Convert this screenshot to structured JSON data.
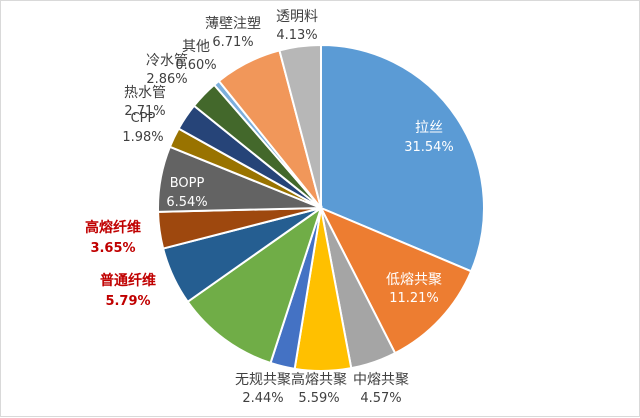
{
  "chart_data": {
    "type": "pie",
    "title": "",
    "slices": [
      {
        "label": "拉丝",
        "value": "31.54%",
        "pct": 31.54,
        "color": "#5b9bd5",
        "label_color": "#ffffff"
      },
      {
        "label": "低熔共聚",
        "value": "11.21%",
        "pct": 11.21,
        "color": "#ed7d31",
        "label_color": "#ffffff"
      },
      {
        "label": "中熔共聚",
        "value": "4.57%",
        "pct": 4.57,
        "color": "#a5a5a5",
        "label_color": "#404040"
      },
      {
        "label": "高熔共聚",
        "value": "5.59%",
        "pct": 5.59,
        "color": "#ffc000",
        "label_color": "#404040"
      },
      {
        "label": "无规共聚",
        "value": "2.44%",
        "pct": 2.44,
        "color": "#4472c4",
        "label_color": "#404040"
      },
      {
        "label": "",
        "value": "",
        "pct": 10.3,
        "color": "#70ad47",
        "label_color": "#404040"
      },
      {
        "label": "普通纤维",
        "value": "5.79%",
        "pct": 5.79,
        "color": "#255e91",
        "label_color": "#c00000"
      },
      {
        "label": "高熔纤维",
        "value": "3.65%",
        "pct": 3.65,
        "color": "#9e480e",
        "label_color": "#c00000"
      },
      {
        "label": "BOPP",
        "value": "6.54%",
        "pct": 6.54,
        "color": "#636363",
        "label_color": "#ffffff"
      },
      {
        "label": "CPP",
        "value": "1.98%",
        "pct": 1.98,
        "color": "#997300",
        "label_color": "#404040"
      },
      {
        "label": "热水管",
        "value": "2.71%",
        "pct": 2.71,
        "color": "#264478",
        "label_color": "#404040"
      },
      {
        "label": "冷水管",
        "value": "2.86%",
        "pct": 2.86,
        "color": "#43682b",
        "label_color": "#404040"
      },
      {
        "label": "其他",
        "value": "0.60%",
        "pct": 0.6,
        "color": "#7cafdd",
        "label_color": "#404040"
      },
      {
        "label": "薄壁注塑",
        "value": "6.71%",
        "pct": 6.71,
        "color": "#f1975a",
        "label_color": "#404040"
      },
      {
        "label": "透明料",
        "value": "4.13%",
        "pct": 4.13,
        "color": "#b7b7b7",
        "label_color": "#404040"
      }
    ]
  }
}
